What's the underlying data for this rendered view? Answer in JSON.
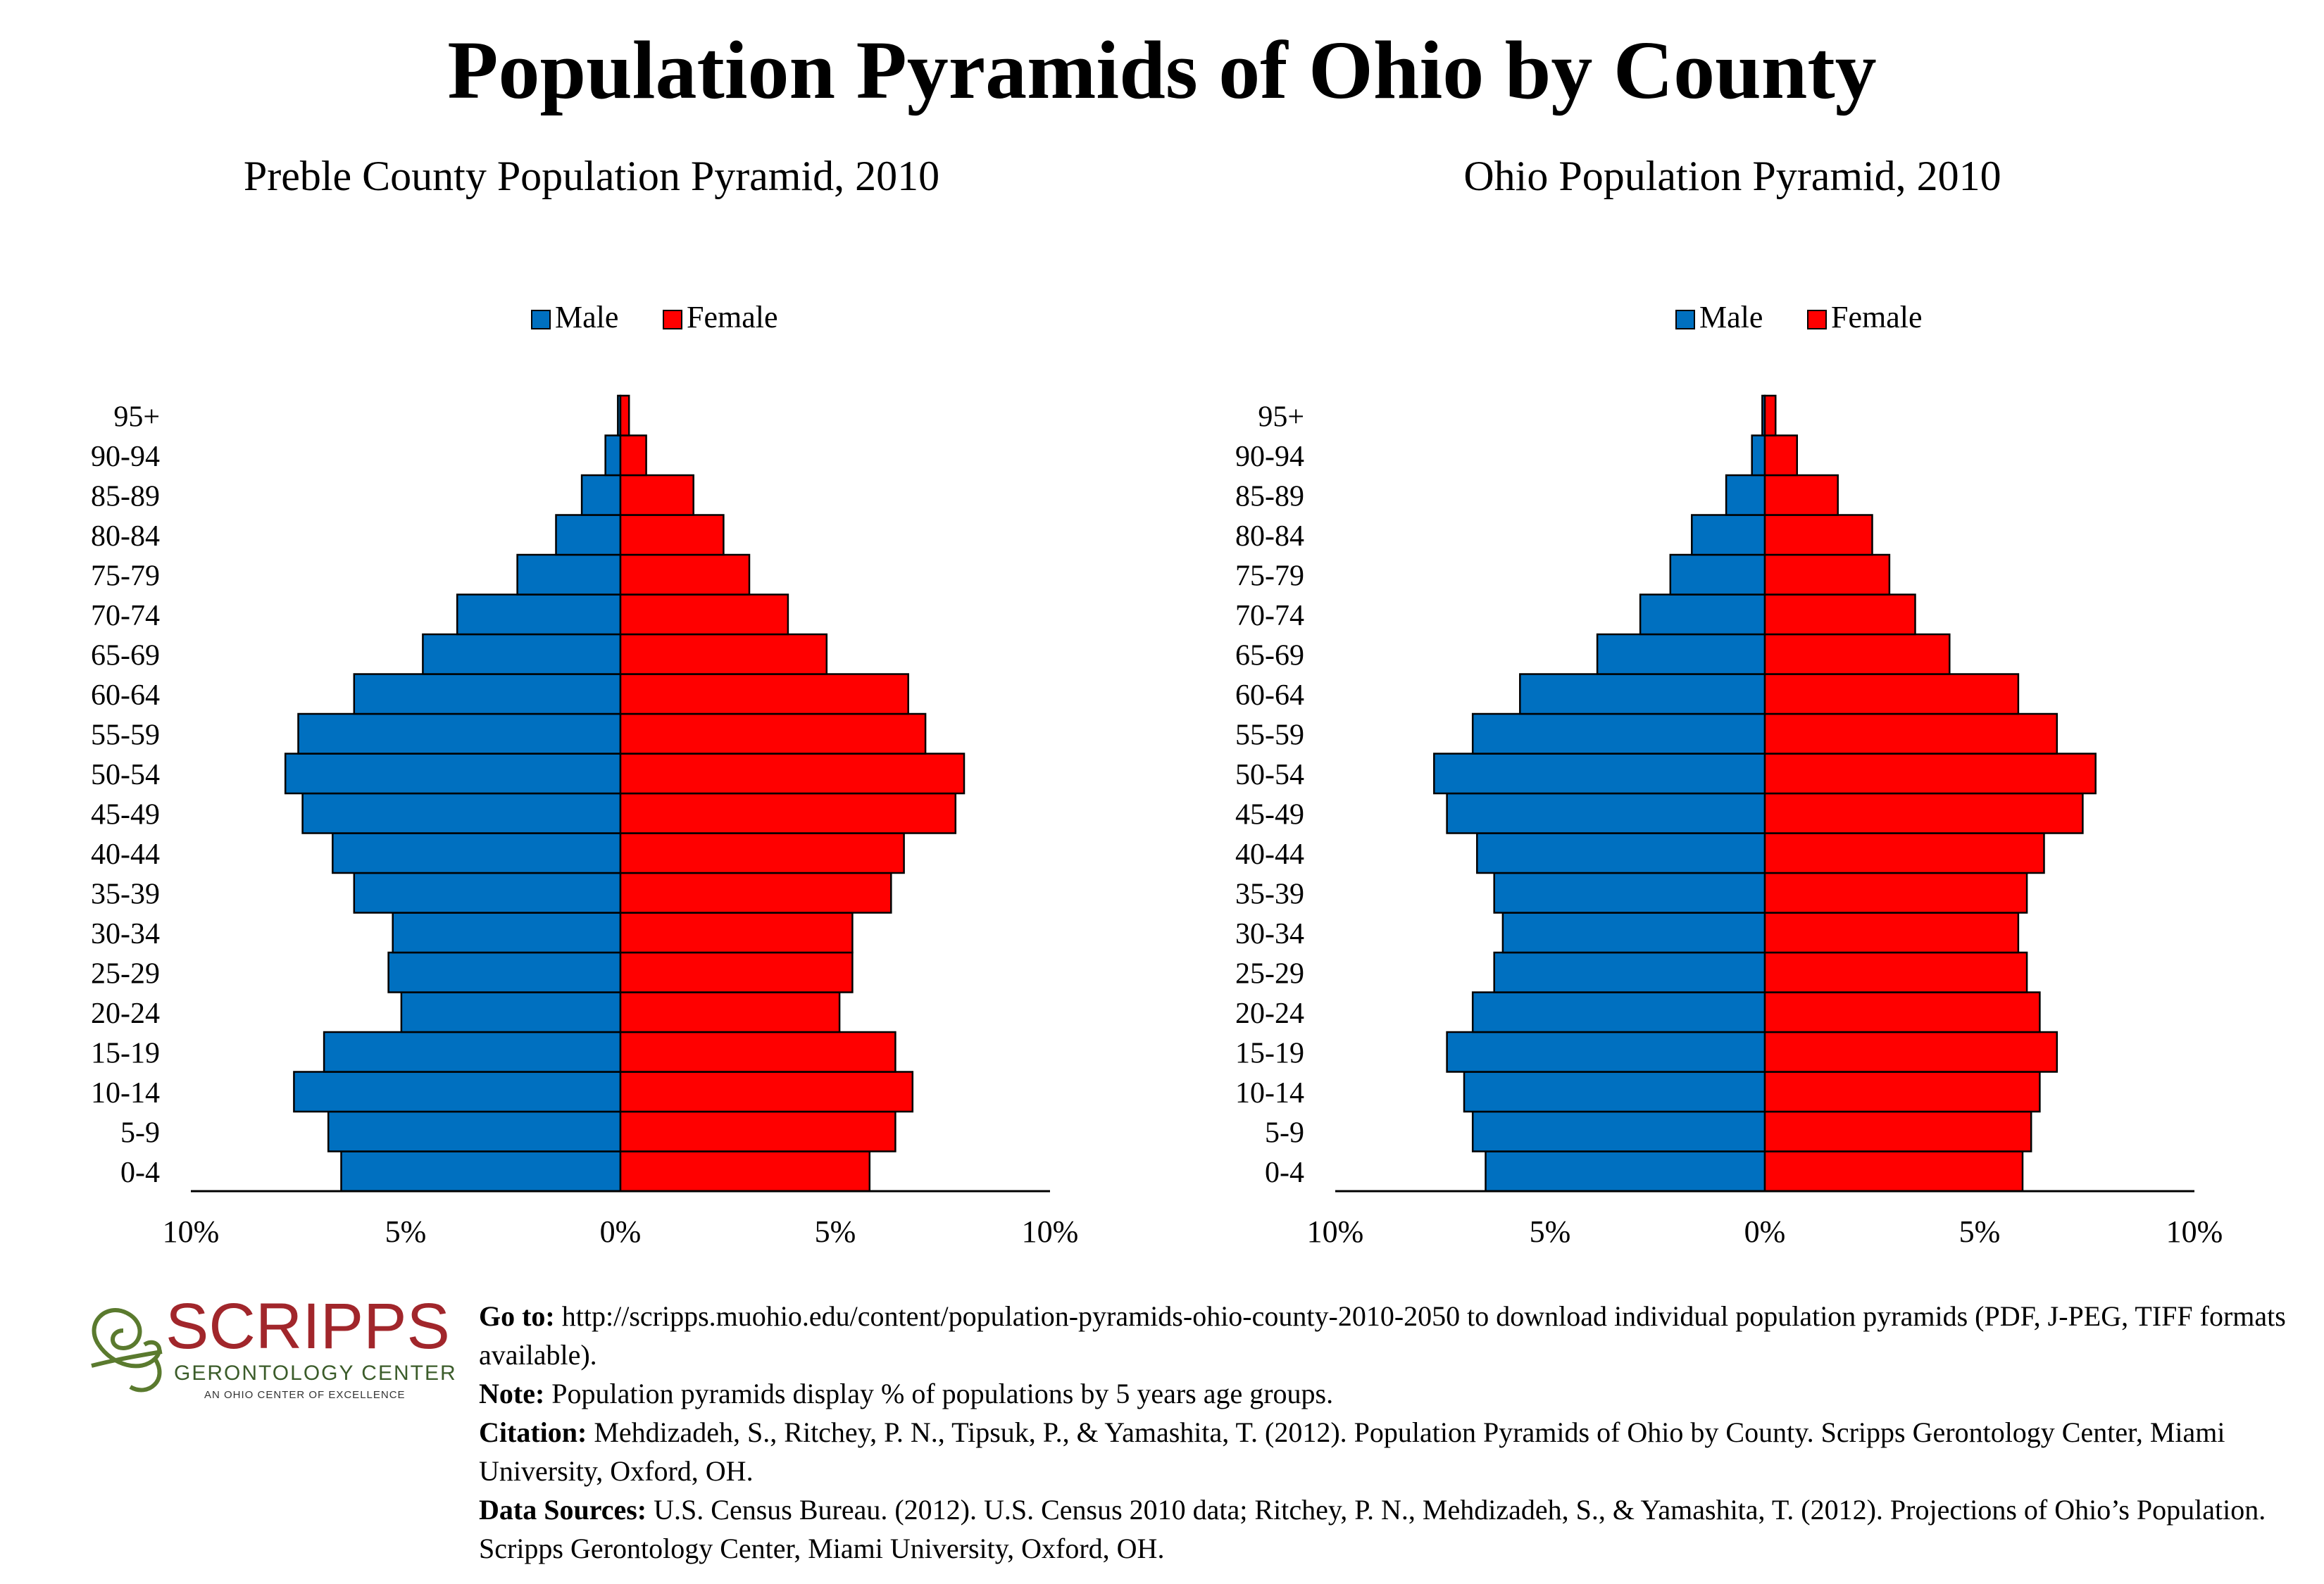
{
  "title": "Population Pyramids of Ohio by County",
  "legend": {
    "male": "Male",
    "female": "Female"
  },
  "colors": {
    "male": "#0070C0",
    "female": "#FF0000"
  },
  "chart_data": [
    {
      "type": "bar",
      "title": "Preble County Population Pyramid, 2010",
      "categories": [
        "0-4",
        "5-9",
        "10-14",
        "15-19",
        "20-24",
        "25-29",
        "30-34",
        "35-39",
        "40-44",
        "45-49",
        "50-54",
        "55-59",
        "60-64",
        "65-69",
        "70-74",
        "75-79",
        "80-84",
        "85-89",
        "90-94",
        "95+"
      ],
      "series": [
        {
          "name": "Male",
          "values": [
            6.5,
            6.8,
            7.6,
            6.9,
            5.1,
            5.4,
            5.3,
            6.2,
            6.7,
            7.4,
            7.8,
            7.5,
            6.2,
            4.6,
            3.8,
            2.4,
            1.5,
            0.9,
            0.35,
            0.06
          ]
        },
        {
          "name": "Female",
          "values": [
            5.8,
            6.4,
            6.8,
            6.4,
            5.1,
            5.4,
            5.4,
            6.3,
            6.6,
            7.8,
            8.0,
            7.1,
            6.7,
            4.8,
            3.9,
            3.0,
            2.4,
            1.7,
            0.6,
            0.2
          ]
        }
      ],
      "xlim": [
        -10,
        10
      ],
      "xticks": [
        "10%",
        "5%",
        "0%",
        "5%",
        "10%"
      ]
    },
    {
      "type": "bar",
      "title": "Ohio Population Pyramid, 2010",
      "categories": [
        "0-4",
        "5-9",
        "10-14",
        "15-19",
        "20-24",
        "25-29",
        "30-34",
        "35-39",
        "40-44",
        "45-49",
        "50-54",
        "55-59",
        "60-64",
        "65-69",
        "70-74",
        "75-79",
        "80-84",
        "85-89",
        "90-94",
        "95+"
      ],
      "series": [
        {
          "name": "Male",
          "values": [
            6.5,
            6.8,
            7.0,
            7.4,
            6.8,
            6.3,
            6.1,
            6.3,
            6.7,
            7.4,
            7.7,
            6.8,
            5.7,
            3.9,
            2.9,
            2.2,
            1.7,
            0.9,
            0.3,
            0.06
          ]
        },
        {
          "name": "Female",
          "values": [
            6.0,
            6.2,
            6.4,
            6.8,
            6.4,
            6.1,
            5.9,
            6.1,
            6.5,
            7.4,
            7.7,
            6.8,
            5.9,
            4.3,
            3.5,
            2.9,
            2.5,
            1.7,
            0.75,
            0.25
          ]
        }
      ],
      "xlim": [
        -10,
        10
      ],
      "xticks": [
        "10%",
        "5%",
        "0%",
        "5%",
        "10%"
      ]
    }
  ],
  "logo": {
    "name": "SCRIPPS",
    "subtitle": "GERONTOLOGY CENTER",
    "tagline": "AN OHIO CENTER OF EXCELLENCE"
  },
  "notes": {
    "goto_label": "Go to:",
    "goto_text": " http://scripps.muohio.edu/content/population-pyramids-ohio-county-2010-2050 to download individual population pyramids (PDF, J-PEG, TIFF formats available).",
    "note_label": "Note:",
    "note_text": " Population pyramids display % of populations by 5 years age groups.",
    "citation_label": "Citation:",
    "citation_text": " Mehdizadeh, S., Ritchey, P. N., Tipsuk, P., & Yamashita, T. (2012). Population Pyramids of Ohio by County. Scripps Gerontology Center, Miami University, Oxford, OH.",
    "sources_label": "Data Sources:",
    "sources_text": " U.S. Census Bureau. (2012). U.S. Census 2010 data; Ritchey, P. N., Mehdizadeh, S., & Yamashita, T. (2012). Projections of Ohio’s Population. Scripps Gerontology Center, Miami University, Oxford, OH."
  }
}
